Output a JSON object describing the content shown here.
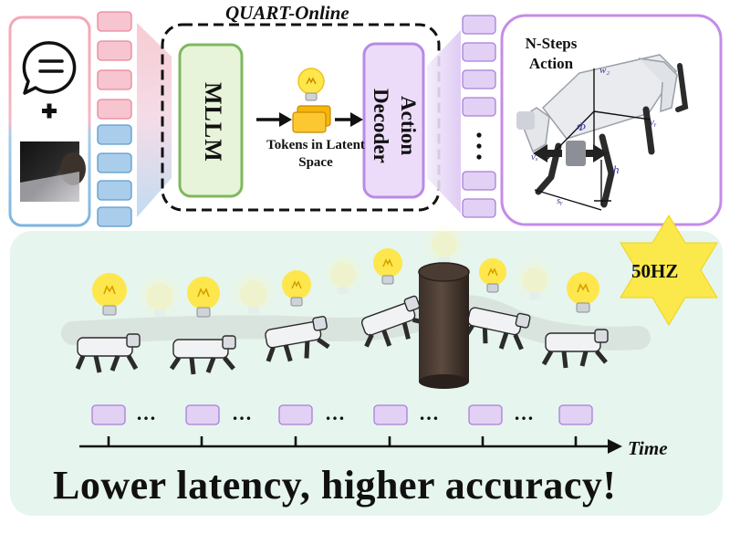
{
  "header": {
    "title": "QUART-Online"
  },
  "pipeline": {
    "mllm_label": "MLLM",
    "latent_label": "Tokens in Latent Space",
    "decoder_label": "Action Decoder",
    "output_label": "N-Steps Action",
    "output_params": [
      "w₂",
      "vₓ",
      "vᵧ",
      "Φ",
      "h",
      "sᵧ"
    ]
  },
  "timeline": {
    "frequency_label": "50HZ",
    "axis_label": "Time",
    "ellipsis": "…"
  },
  "tagline": "Lower latency, higher accuracy!",
  "colors": {
    "pink_token": "#f7c5cf",
    "blue_token": "#a9cdea",
    "purple_token": "#e3d0f5",
    "mllm_green": "#e7f4d9",
    "bottom_panel": "#e6f5ed",
    "star_yellow": "#fbe84b",
    "bulb_yellow": "#fde74c"
  }
}
